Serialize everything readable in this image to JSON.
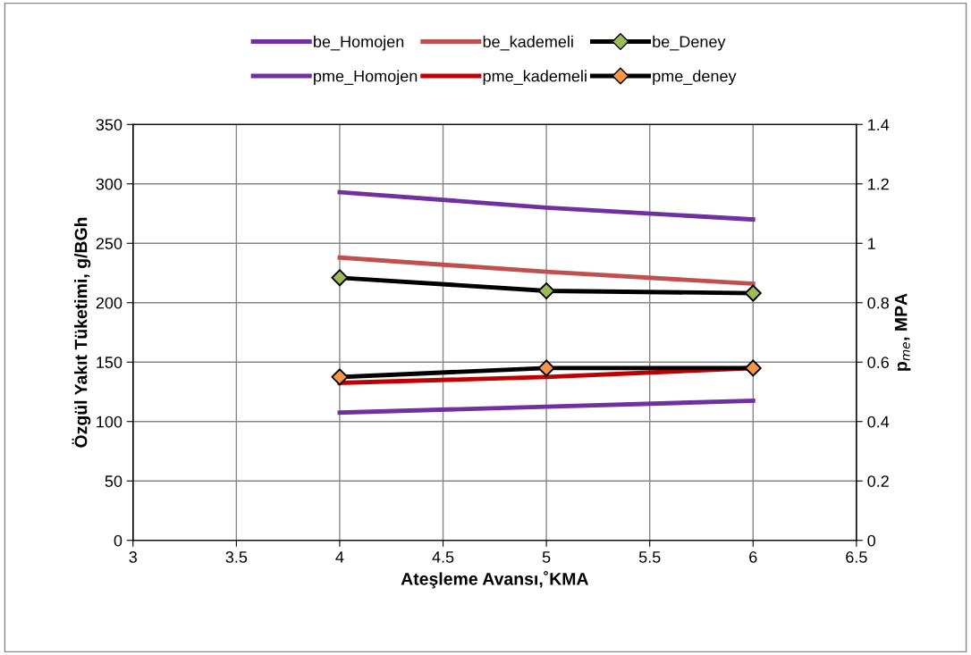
{
  "chart_data": {
    "type": "line",
    "xlabel": "Ateşleme Avansı,˚KMA",
    "ylabel": "Özgül Yakıt Tüketimi, g/BGh",
    "y2label": "p$_{me}$, MPA",
    "x": [
      4,
      5,
      6
    ],
    "xlim": [
      3,
      6.5
    ],
    "xticks": [
      3,
      3.5,
      4,
      4.5,
      5,
      5.5,
      6,
      6.5
    ],
    "ylim": [
      0,
      350
    ],
    "yticks": [
      0,
      50,
      100,
      150,
      200,
      250,
      300,
      350
    ],
    "y2lim": [
      0,
      1.4
    ],
    "y2ticks": [
      0,
      0.2,
      0.4,
      0.6,
      0.8,
      1,
      1.2,
      1.4
    ],
    "grid": true,
    "legend": "top",
    "line_style": "solid",
    "series": [
      {
        "name": "be_Homojen",
        "color": "#7030a0",
        "values": [
          293,
          280,
          270
        ],
        "marker": "none"
      },
      {
        "name": "be_kademeli",
        "color": "#c0504d",
        "values": [
          238,
          226,
          216
        ],
        "marker": "none"
      },
      {
        "name": "be_Deney",
        "color": "#000000",
        "colors": [
          "#9bbb59",
          "#9bbb59",
          "#9bbb59"
        ],
        "values": [
          221,
          210,
          208
        ],
        "marker": "diamond"
      },
      {
        "name": "pme_Homojen",
        "color": "#7030a0",
        "axis": "y2",
        "values": [
          0.43,
          0.45,
          0.47
        ],
        "marker": "none"
      },
      {
        "name": "pme_kademeli",
        "color": "#c00000",
        "axis": "y2",
        "values": [
          0.53,
          0.55,
          0.58
        ],
        "marker": "none"
      },
      {
        "name": "pme_deney",
        "color": "#000000",
        "colors": [
          "#f79646",
          "#f79646",
          "#f79646"
        ],
        "axis": "y2",
        "values": [
          0.55,
          0.58,
          0.58
        ],
        "marker": "diamond"
      }
    ]
  }
}
